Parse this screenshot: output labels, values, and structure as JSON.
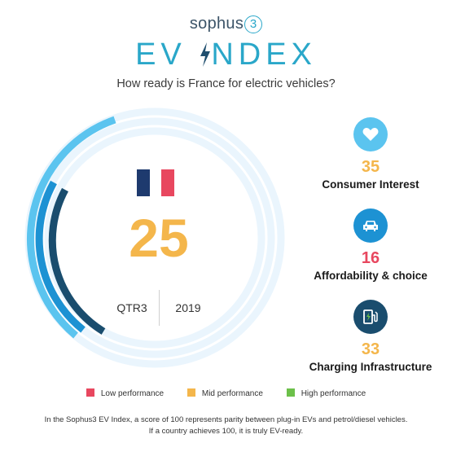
{
  "header": {
    "brand": "sophus",
    "brand_mark": "3",
    "title_part1": "EV ",
    "title_part2": "NDEX",
    "title_bolt": "⚡",
    "subtitle": "How ready is France for electric vehicles?"
  },
  "index": {
    "score": "25",
    "country_flag": "france-flag",
    "quarter": "QTR3",
    "year": "2019"
  },
  "metrics": [
    {
      "value": "35",
      "label": "Consumer Interest",
      "icon": "heart-icon",
      "value_color": "#f4b64b",
      "icon_bg": "#5bc4ef"
    },
    {
      "value": "16",
      "label": "Affordability & choice",
      "icon": "car-icon",
      "value_color": "#e8475f",
      "icon_bg": "#1d92d3"
    },
    {
      "value": "33",
      "label": "Charging Infrastructure",
      "icon": "charging-station-icon",
      "value_color": "#f4b64b",
      "icon_bg": "#1a4d6e"
    }
  ],
  "legend": [
    {
      "label": "Low performance",
      "color": "#e8475f"
    },
    {
      "label": "Mid performance",
      "color": "#f4b64b"
    },
    {
      "label": "High performance",
      "color": "#6cc04a"
    }
  ],
  "footer": {
    "line1": "In the Sophus3 EV Index, a score of 100 represents parity between plug-in EVs and petrol/diesel vehicles.",
    "line2": "If a country achieves 100, it is truly EV-ready."
  },
  "colors": {
    "track": "#eaf5fd",
    "ring_outer": "#5bc4ef",
    "ring_middle": "#1d92d3",
    "ring_inner": "#1a4d6e",
    "accent": "#2aa7c9"
  }
}
